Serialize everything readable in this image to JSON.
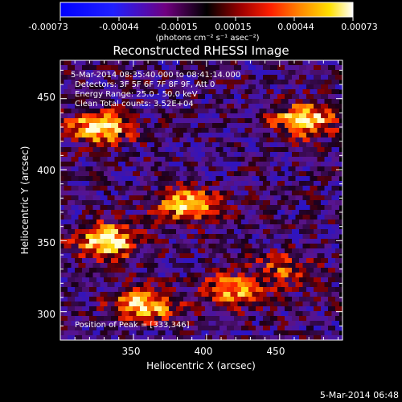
{
  "chart_data": {
    "type": "heatmap",
    "title": "Reconstructed RHESSI Image",
    "xlabel": "Heliocentric X (arcsec)",
    "ylabel": "Heliocentric Y (arcsec)",
    "xlim": [
      300,
      493
    ],
    "ylim": [
      280,
      477
    ],
    "x_ticks": [
      "350",
      "400",
      "450"
    ],
    "y_ticks": [
      "300",
      "350",
      "400",
      "450"
    ],
    "colorbar": {
      "ticks": [
        "-0.00073",
        "-0.00044",
        "-0.00015",
        "0.00015",
        "0.00044",
        "0.00073"
      ],
      "unit_label": "(photons cm⁻² s⁻¹ asec⁻²)",
      "range": [
        -0.00073,
        0.00073
      ]
    },
    "annotations": {
      "time_range": "5-Mar-2014 08:35:40.000 to 08:41:14.000",
      "detectors": "Detectors: 3F 5F 6F 7F 8F 9F, Att 0",
      "energy_range": "Energy Range: 25.0 - 50.0 keV",
      "clean": "Clean     Total counts: 3.52E+04",
      "peak": "Position of Peak = [333,346]"
    },
    "footer_timestamp": "5-Mar-2014 06:48",
    "bright_regions": [
      {
        "x": 330,
        "y": 430,
        "strength": 1.0
      },
      {
        "x": 470,
        "y": 435,
        "strength": 0.95
      },
      {
        "x": 390,
        "y": 375,
        "strength": 0.9
      },
      {
        "x": 335,
        "y": 350,
        "strength": 1.0
      },
      {
        "x": 360,
        "y": 305,
        "strength": 0.9
      },
      {
        "x": 420,
        "y": 315,
        "strength": 0.7
      },
      {
        "x": 455,
        "y": 330,
        "strength": 0.45
      }
    ]
  }
}
